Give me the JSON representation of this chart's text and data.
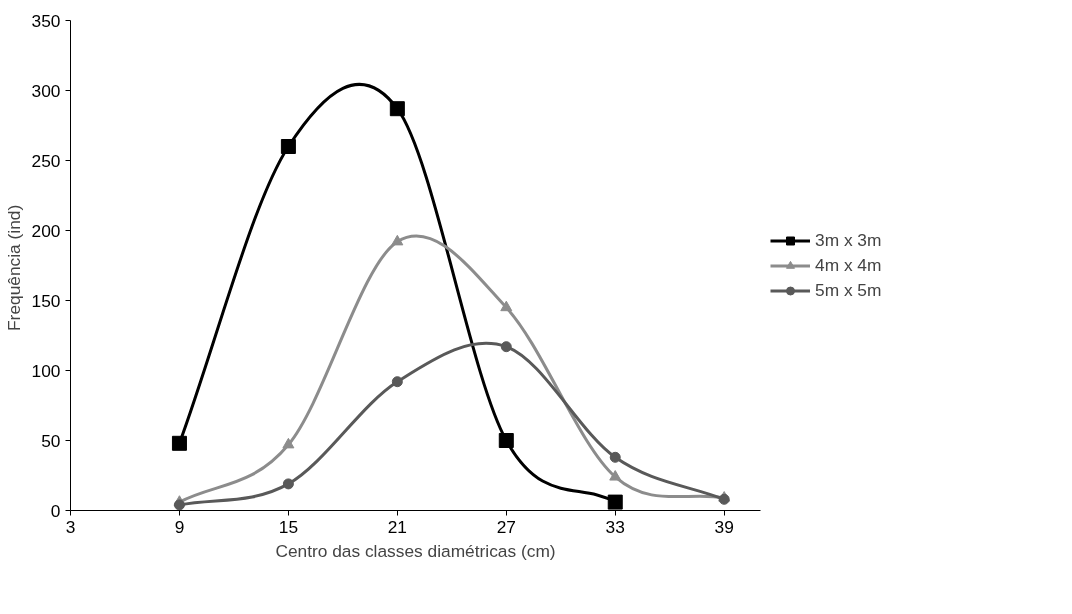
{
  "chart_data": {
    "type": "line",
    "xlabel": "Centro das classes diamétricas (cm)",
    "ylabel": "Frequência  (ind)",
    "x": [
      9,
      15,
      21,
      27,
      33,
      39
    ],
    "series": [
      {
        "name": "3m x 3m",
        "color": "#000000",
        "marker": "square",
        "x": [
          9,
          15,
          21,
          27,
          33
        ],
        "values": [
          48,
          260,
          287,
          50,
          6
        ]
      },
      {
        "name": "4m x 4m",
        "color": "#8c8c8c",
        "marker": "triangle",
        "values": [
          6,
          47,
          192,
          145,
          24,
          9
        ]
      },
      {
        "name": "5m x 5m",
        "color": "#595959",
        "marker": "circle",
        "values": [
          4,
          19,
          92,
          117,
          38,
          8
        ]
      }
    ],
    "xlim": [
      3,
      41
    ],
    "xticks": [
      3,
      9,
      15,
      21,
      27,
      33,
      39
    ],
    "ylim": [
      0,
      350
    ],
    "yticks": [
      0,
      50,
      100,
      150,
      200,
      250,
      300,
      350
    ],
    "grid": false,
    "legend": "right"
  }
}
